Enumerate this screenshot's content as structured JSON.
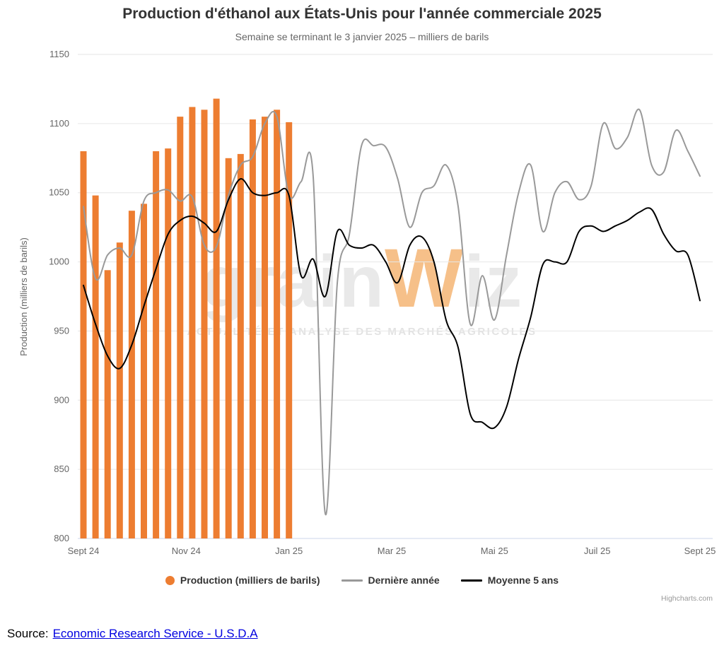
{
  "chart_data": {
    "type": "combo",
    "title": "Production d'éthanol aux États-Unis pour l'année commerciale 2025",
    "subtitle": "Semaine se terminant le 3 janvier 2025 – milliers de barils",
    "ylabel": "Production (milliers de barils)",
    "ylim": [
      800,
      1150
    ],
    "y_ticks": [
      800,
      850,
      900,
      950,
      1000,
      1050,
      1100,
      1150
    ],
    "x_tick_labels": [
      "Sept 24",
      "Nov 24",
      "Jan 25",
      "Mar 25",
      "Mai 25",
      "Juil 25",
      "Sept 25"
    ],
    "x_tick_weeks": [
      0,
      8.5,
      17,
      25.5,
      34,
      42.5,
      51
    ],
    "x_unit": "week",
    "weeks_total": 52,
    "grid": "horizontal",
    "legend_position": "bottom",
    "series": [
      {
        "key": "production",
        "name": "Production (milliers de barils)",
        "type": "bar",
        "color": "#ED7D31",
        "start_week": 0,
        "values": [
          1080,
          1048,
          994,
          1014,
          1037,
          1042,
          1080,
          1082,
          1105,
          1112,
          1110,
          1118,
          1075,
          1078,
          1103,
          1105,
          1110,
          1101
        ]
      },
      {
        "key": "derniere-annee",
        "name": "Dernière année",
        "type": "line",
        "color": "#999999",
        "start_week": 0,
        "values": [
          1040,
          988,
          1005,
          1010,
          1005,
          1044,
          1050,
          1052,
          1044,
          1047,
          1012,
          1011,
          1048,
          1070,
          1076,
          1100,
          1105,
          1048,
          1058,
          1062,
          818,
          985,
          1020,
          1084,
          1084,
          1083,
          1060,
          1025,
          1050,
          1055,
          1070,
          1040,
          955,
          990,
          958,
          1005,
          1050,
          1070,
          1022,
          1050,
          1058,
          1045,
          1055,
          1100,
          1082,
          1090,
          1110,
          1070,
          1065,
          1095,
          1080,
          1062
        ]
      },
      {
        "key": "moyenne-5-ans",
        "name": "Moyenne 5 ans",
        "type": "line",
        "color": "#000000",
        "start_week": 0,
        "values": [
          983,
          955,
          932,
          923,
          940,
          968,
          995,
          1020,
          1030,
          1033,
          1028,
          1022,
          1045,
          1060,
          1050,
          1048,
          1050,
          1048,
          990,
          1002,
          975,
          1022,
          1012,
          1010,
          1012,
          1000,
          985,
          1012,
          1018,
          1000,
          958,
          938,
          890,
          884,
          880,
          895,
          930,
          960,
          998,
          1000,
          1000,
          1022,
          1026,
          1022,
          1026,
          1030,
          1036,
          1038,
          1020,
          1008,
          1005,
          972
        ]
      }
    ]
  },
  "watermark": {
    "brand_prefix": "grain",
    "brand_w": "W",
    "brand_suffix": "iz",
    "tagline": "ACTUALITÉ ET ANALYSE DES MARCHÉS AGRICOLES"
  },
  "footer": {
    "credit": "Highcharts.com",
    "source_label": "Source:",
    "source_link_text": "Economic Research Service - U.S.D.A"
  }
}
